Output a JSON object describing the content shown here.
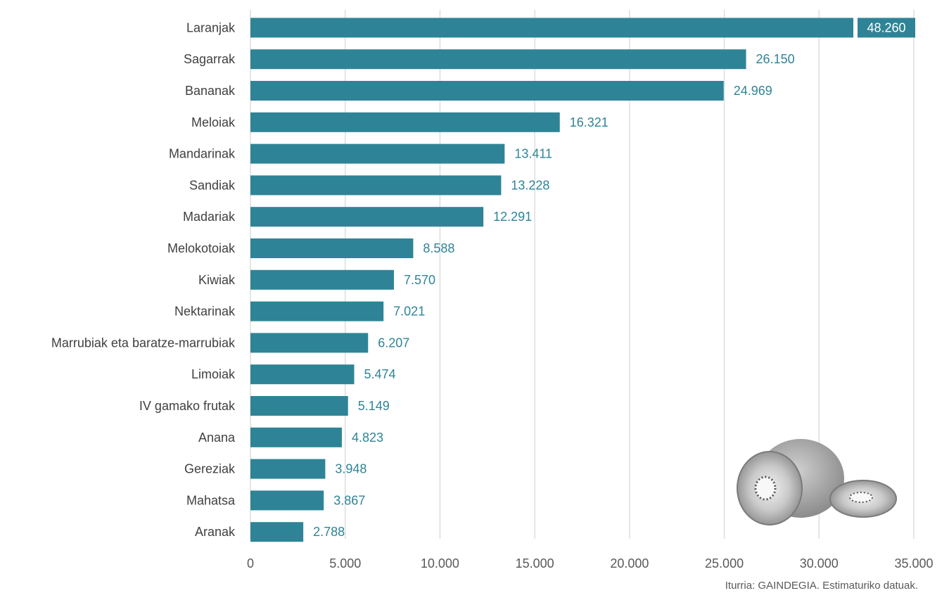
{
  "chart_data": {
    "type": "bar",
    "orientation": "horizontal",
    "categories": [
      "Laranjak",
      "Sagarrak",
      "Bananak",
      "Meloiak",
      "Mandarinak",
      "Sandiak",
      "Madariak",
      "Melokotoiak",
      "Kiwiak",
      "Nektarinak",
      "Marrubiak eta baratze-marrubiak",
      "Limoiak",
      "IV gamako frutak",
      "Anana",
      "Gereziak",
      "Mahatsa",
      "Aranak"
    ],
    "values": [
      48260,
      26150,
      24969,
      16321,
      13411,
      13228,
      12291,
      8588,
      7570,
      7021,
      6207,
      5474,
      5149,
      4823,
      3948,
      3867,
      2788
    ],
    "value_labels": [
      "48.260",
      "26.150",
      "24.969",
      "16.321",
      "13.411",
      "13.228",
      "12.291",
      "8.588",
      "7.570",
      "7.021",
      "6.207",
      "5.474",
      "5.149",
      "4.823",
      "3.948",
      "3.867",
      "2.788"
    ],
    "xlim": [
      0,
      35000
    ],
    "x_ticks": [
      0,
      5000,
      10000,
      15000,
      20000,
      25000,
      30000,
      35000
    ],
    "x_tick_labels": [
      "0",
      "5.000",
      "10.000",
      "15.000",
      "20.000",
      "25.000",
      "30.000",
      "35.000"
    ],
    "grid": true,
    "legend": "none",
    "bar_color": "#2e8496",
    "source_note": "Iturria: GAINDEGIA. Estimaturiko datuak."
  }
}
